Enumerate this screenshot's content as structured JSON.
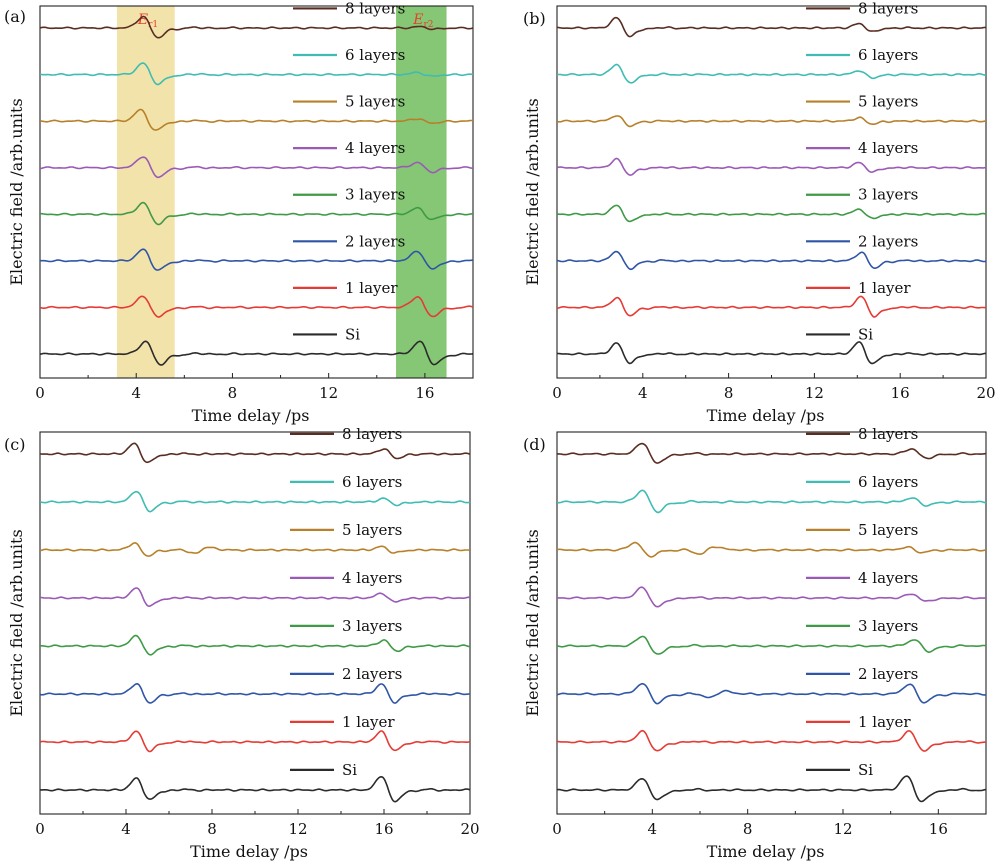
{
  "colors": {
    "8 layers": "#5a2d22",
    "6 layers": "#3fbcb3",
    "5 layers": "#b7802a",
    "4 layers": "#9a5ab5",
    "3 layers": "#3f9a45",
    "2 layers": "#2f56a6",
    "1 layer": "#e53b35",
    "Si": "#2b2b2b",
    "band_er1": "#f1e2a6",
    "band_er2": "#7fc46e"
  },
  "chart_data": [
    {
      "type": "line",
      "panel_label": "(a)",
      "title": "",
      "xlabel": "Time delay /ps",
      "ylabel": "Electric field /arb.units",
      "xlim": [
        0,
        18
      ],
      "xticks": [
        0,
        4,
        8,
        12,
        16
      ],
      "xtick_labels": [
        "0",
        "4",
        "8",
        "12",
        "16"
      ],
      "grid": false,
      "legend_position": "right",
      "annotations": [
        {
          "label": "E",
          "subscript": "r1",
          "x_range": [
            3.2,
            5.6
          ]
        },
        {
          "label": "E",
          "subscript": "r2",
          "x_range": [
            14.8,
            16.9
          ]
        }
      ],
      "series": [
        {
          "name": "8 layers",
          "offset": 7,
          "pulses": [
            {
              "t": 4.6,
              "a": 1.0
            },
            {
              "t": 16.1,
              "a": 0.12
            }
          ]
        },
        {
          "name": "6 layers",
          "offset": 6,
          "pulses": [
            {
              "t": 4.6,
              "a": 1.0
            },
            {
              "t": 16.0,
              "a": 0.18
            }
          ]
        },
        {
          "name": "5 layers",
          "offset": 5,
          "pulses": [
            {
              "t": 4.5,
              "a": 1.0
            },
            {
              "t": 16.0,
              "a": 0.22
            }
          ]
        },
        {
          "name": "4 layers",
          "offset": 4,
          "pulses": [
            {
              "t": 4.6,
              "a": 1.0
            },
            {
              "t": 16.0,
              "a": 0.45
            }
          ]
        },
        {
          "name": "3 layers",
          "offset": 3,
          "pulses": [
            {
              "t": 4.6,
              "a": 1.0
            },
            {
              "t": 16.0,
              "a": 0.55
            }
          ]
        },
        {
          "name": "2 layers",
          "offset": 2,
          "pulses": [
            {
              "t": 4.6,
              "a": 1.0
            },
            {
              "t": 16.0,
              "a": 0.85
            }
          ]
        },
        {
          "name": "1 layer",
          "offset": 1,
          "pulses": [
            {
              "t": 4.6,
              "a": 1.0
            },
            {
              "t": 16.0,
              "a": 0.95
            }
          ]
        },
        {
          "name": "Si",
          "offset": 0,
          "pulses": [
            {
              "t": 4.7,
              "a": 1.1
            },
            {
              "t": 16.1,
              "a": 1.1
            }
          ]
        }
      ]
    },
    {
      "type": "line",
      "panel_label": "(b)",
      "title": "",
      "xlabel": "Time delay /ps",
      "ylabel": "Electric field /arb.units",
      "xlim": [
        0,
        20
      ],
      "xticks": [
        0,
        4,
        8,
        12,
        16,
        20
      ],
      "xtick_labels": [
        "0",
        "4",
        "8",
        "12",
        "16",
        "20"
      ],
      "grid": false,
      "legend_position": "right",
      "series": [
        {
          "name": "8 layers",
          "offset": 7,
          "pulses": [
            {
              "t": 3.1,
              "a": 0.9
            },
            {
              "t": 14.4,
              "a": 0.4
            }
          ]
        },
        {
          "name": "6 layers",
          "offset": 6,
          "pulses": [
            {
              "t": 3.1,
              "a": 0.9
            },
            {
              "t": 14.4,
              "a": 0.35
            }
          ]
        },
        {
          "name": "5 layers",
          "offset": 5,
          "pulses": [
            {
              "t": 3.1,
              "a": 0.5
            },
            {
              "t": 14.4,
              "a": 0.3
            }
          ]
        },
        {
          "name": "4 layers",
          "offset": 4,
          "pulses": [
            {
              "t": 3.1,
              "a": 0.75
            },
            {
              "t": 14.4,
              "a": 0.45
            }
          ]
        },
        {
          "name": "3 layers",
          "offset": 3,
          "pulses": [
            {
              "t": 3.1,
              "a": 0.8
            },
            {
              "t": 14.4,
              "a": 0.45
            }
          ]
        },
        {
          "name": "2 layers",
          "offset": 2,
          "pulses": [
            {
              "t": 3.1,
              "a": 0.85
            },
            {
              "t": 14.5,
              "a": 0.75
            }
          ]
        },
        {
          "name": "1 layer",
          "offset": 1,
          "pulses": [
            {
              "t": 3.1,
              "a": 0.85
            },
            {
              "t": 14.5,
              "a": 0.95
            }
          ]
        },
        {
          "name": "Si",
          "offset": 0,
          "pulses": [
            {
              "t": 3.1,
              "a": 0.95
            },
            {
              "t": 14.4,
              "a": 1.05
            }
          ]
        }
      ]
    },
    {
      "type": "line",
      "panel_label": "(c)",
      "title": "",
      "xlabel": "Time delay /ps",
      "ylabel": "Electric field /arb.units",
      "xlim": [
        0,
        20
      ],
      "xticks": [
        0,
        4,
        8,
        12,
        16,
        20
      ],
      "xtick_labels": [
        "0",
        "4",
        "8",
        "12",
        "16",
        "20"
      ],
      "grid": false,
      "legend_position": "right",
      "series": [
        {
          "name": "8 layers",
          "offset": 7,
          "pulses": [
            {
              "t": 4.7,
              "a": 0.9
            },
            {
              "t": 16.3,
              "a": 0.45
            }
          ]
        },
        {
          "name": "6 layers",
          "offset": 6,
          "pulses": [
            {
              "t": 4.8,
              "a": 0.95
            },
            {
              "t": 16.3,
              "a": 0.3
            }
          ]
        },
        {
          "name": "5 layers",
          "offset": 5,
          "pulses": [
            {
              "t": 4.7,
              "a": 0.6
            },
            {
              "t": 7.5,
              "a": -0.3
            },
            {
              "t": 16.2,
              "a": 0.3
            }
          ]
        },
        {
          "name": "4 layers",
          "offset": 4,
          "pulses": [
            {
              "t": 4.8,
              "a": 0.85
            },
            {
              "t": 16.2,
              "a": 0.4
            }
          ]
        },
        {
          "name": "3 layers",
          "offset": 3,
          "pulses": [
            {
              "t": 4.8,
              "a": 0.9
            },
            {
              "t": 16.3,
              "a": 0.5
            }
          ]
        },
        {
          "name": "2 layers",
          "offset": 2,
          "pulses": [
            {
              "t": 4.8,
              "a": 0.9
            },
            {
              "t": 16.2,
              "a": 0.85
            }
          ]
        },
        {
          "name": "1 layer",
          "offset": 1,
          "pulses": [
            {
              "t": 4.8,
              "a": 0.9
            },
            {
              "t": 16.2,
              "a": 0.9
            }
          ]
        },
        {
          "name": "Si",
          "offset": 0,
          "pulses": [
            {
              "t": 4.8,
              "a": 1.0
            },
            {
              "t": 16.2,
              "a": 1.2
            }
          ]
        }
      ]
    },
    {
      "type": "line",
      "panel_label": "(d)",
      "title": "",
      "xlabel": "Time delay /ps",
      "ylabel": "Electric field /arb.units",
      "xlim": [
        0,
        18
      ],
      "xticks": [
        0,
        4,
        8,
        12,
        16
      ],
      "xtick_labels": [
        "0",
        "4",
        "8",
        "12",
        "16"
      ],
      "grid": false,
      "legend_position": "right",
      "series": [
        {
          "name": "8 layers",
          "offset": 7,
          "pulses": [
            {
              "t": 3.9,
              "a": 0.95
            },
            {
              "t": 15.2,
              "a": 0.45
            }
          ]
        },
        {
          "name": "6 layers",
          "offset": 6,
          "pulses": [
            {
              "t": 3.9,
              "a": 1.0
            },
            {
              "t": 15.2,
              "a": 0.35
            }
          ]
        },
        {
          "name": "5 layers",
          "offset": 5,
          "pulses": [
            {
              "t": 3.6,
              "a": 0.65
            },
            {
              "t": 6.3,
              "a": -0.35
            },
            {
              "t": 15.0,
              "a": 0.25
            }
          ]
        },
        {
          "name": "4 layers",
          "offset": 4,
          "pulses": [
            {
              "t": 3.9,
              "a": 0.9
            },
            {
              "t": 15.2,
              "a": 0.35
            }
          ]
        },
        {
          "name": "3 layers",
          "offset": 3,
          "pulses": [
            {
              "t": 3.9,
              "a": 0.85
            },
            {
              "t": 15.3,
              "a": 0.55
            }
          ]
        },
        {
          "name": "2 layers",
          "offset": 2,
          "pulses": [
            {
              "t": 3.9,
              "a": 0.9
            },
            {
              "t": 6.7,
              "a": -0.3
            },
            {
              "t": 15.1,
              "a": 0.85
            }
          ]
        },
        {
          "name": "1 layer",
          "offset": 1,
          "pulses": [
            {
              "t": 3.9,
              "a": 0.9
            },
            {
              "t": 15.1,
              "a": 0.9
            }
          ]
        },
        {
          "name": "Si",
          "offset": 0,
          "pulses": [
            {
              "t": 3.9,
              "a": 1.0
            },
            {
              "t": 15.0,
              "a": 1.2
            }
          ]
        }
      ]
    }
  ]
}
